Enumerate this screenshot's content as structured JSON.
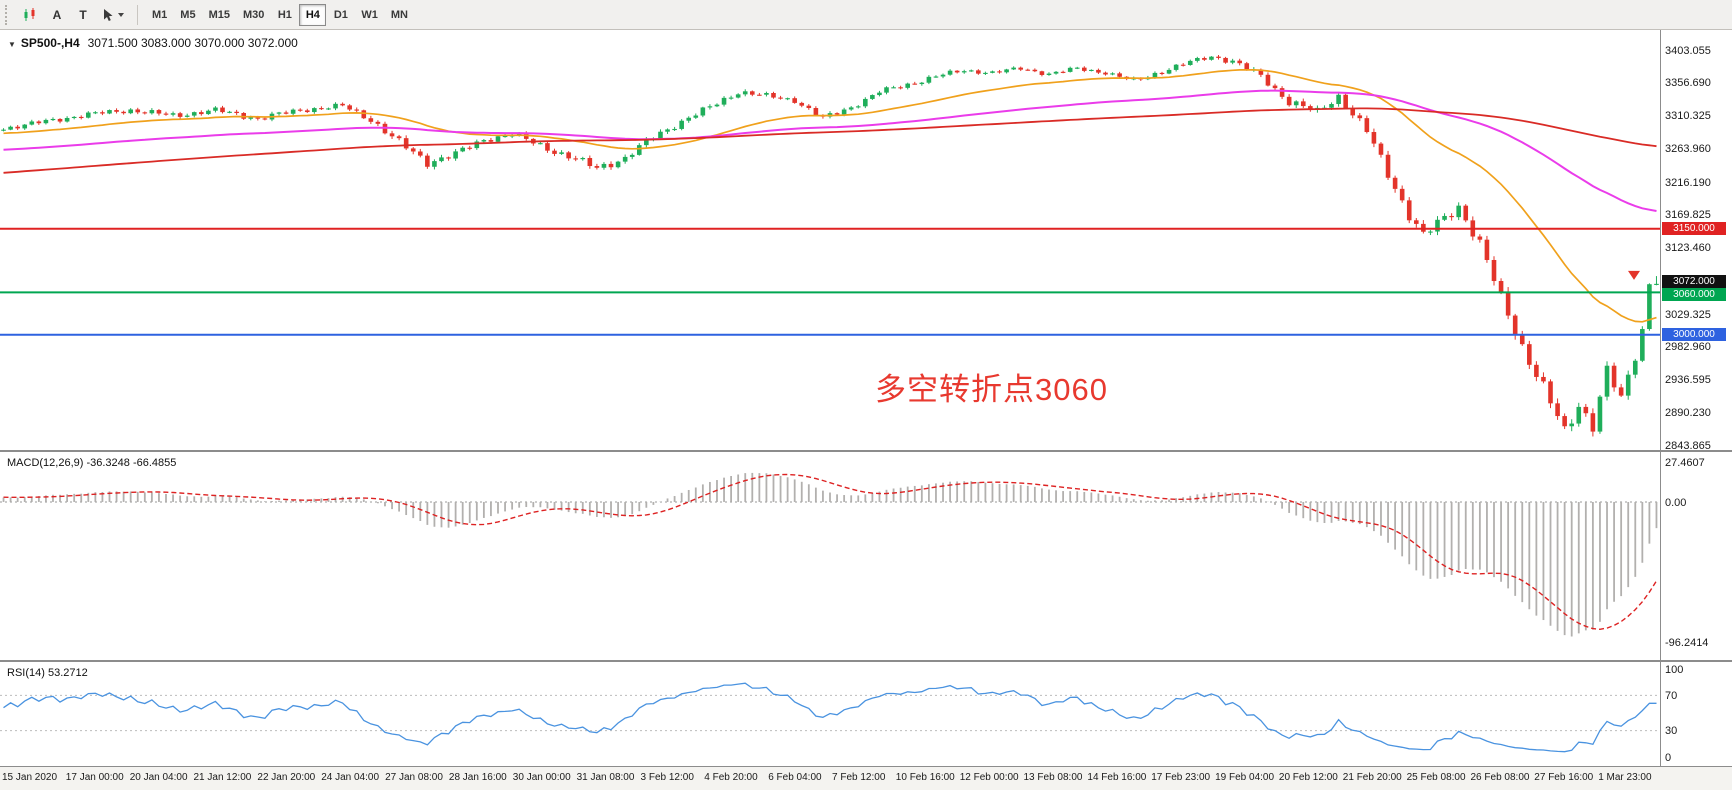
{
  "toolbar": {
    "tools": [
      {
        "name": "text-tool",
        "label": "A"
      },
      {
        "name": "label-tool",
        "label": "T"
      }
    ],
    "timeframes": [
      "M1",
      "M5",
      "M15",
      "M30",
      "H1",
      "H4",
      "D1",
      "W1",
      "MN"
    ],
    "active_timeframe": "H4"
  },
  "chart": {
    "expand_icon": "▼",
    "title_symbol": "SP500-,H4",
    "title_ohlc": "3071.500 3083.000 3070.000 3072.000",
    "annotation": "多空转折点3060"
  },
  "colors": {
    "bull": "#1fae5a",
    "bear": "#e3342a",
    "ma_fast": "#f0a11c",
    "ma_mid": "#ea3cea",
    "ma_slow": "#d92b26",
    "macd_hist": "#b2b0ae",
    "macd_signal": "#dd2222",
    "rsi": "#4a93e0",
    "annotation": "#e8392f"
  },
  "price_axis": {
    "min": 2843.865,
    "max": 3403.055,
    "ticks": [
      [
        "3403.055",
        3403.055
      ],
      [
        "3356.690",
        3356.69
      ],
      [
        "3310.325",
        3310.325
      ],
      [
        "3263.960",
        3263.96
      ],
      [
        "3216.190",
        3216.19
      ],
      [
        "3169.825",
        3169.825
      ],
      [
        "3123.460",
        3123.46
      ],
      [
        "3029.325",
        3029.325
      ],
      [
        "2982.960",
        2982.96
      ],
      [
        "2936.595",
        2936.595
      ],
      [
        "2890.230",
        2890.23
      ],
      [
        "2843.865",
        2843.865
      ]
    ]
  },
  "levels": [
    {
      "price": 3150.0,
      "label": "3150.000",
      "color": "#e02222",
      "line": true
    },
    {
      "price": 3072.0,
      "label": "3072.000",
      "color": "#111111",
      "line": false
    },
    {
      "price": 3060.0,
      "label": "3060.000",
      "color": "#00a651",
      "line": true
    },
    {
      "price": 3000.0,
      "label": "3000.000",
      "color": "#2e62e0",
      "line": true
    }
  ],
  "macd": {
    "label": "MACD(12,26,9) -36.3248 -66.4855",
    "fast": 12,
    "slow": 26,
    "signal": 9,
    "max": 27.4607,
    "min": -96.2414,
    "ticks": [
      [
        "27.4607",
        27.4607
      ],
      [
        "0.00",
        0
      ],
      [
        "-96.2414",
        -96.2414
      ]
    ]
  },
  "rsi": {
    "label": "RSI(14) 53.2712",
    "period": 14,
    "levels": [
      70,
      30
    ],
    "ticks": [
      [
        "100",
        100
      ],
      [
        "70",
        70
      ],
      [
        "30",
        30
      ],
      [
        "0",
        0
      ]
    ]
  },
  "time_axis": [
    "15 Jan 2020",
    "17 Jan 00:00",
    "20 Jan 04:00",
    "21 Jan 12:00",
    "22 Jan 20:00",
    "24 Jan 04:00",
    "27 Jan 08:00",
    "28 Jan 16:00",
    "30 Jan 00:00",
    "31 Jan 08:00",
    "3 Feb 12:00",
    "4 Feb 20:00",
    "6 Feb 04:00",
    "7 Feb 12:00",
    "10 Feb 16:00",
    "12 Feb 00:00",
    "13 Feb 08:00",
    "14 Feb 16:00",
    "17 Feb 23:00",
    "19 Feb 04:00",
    "20 Feb 12:00",
    "21 Feb 20:00",
    "25 Feb 08:00",
    "26 Feb 08:00",
    "27 Feb 16:00",
    "1 Mar 23:00"
  ],
  "chart_data": {
    "type": "candlestick",
    "symbol": "SP500-",
    "timeframe": "H4",
    "current_ohlc": {
      "open": 3071.5,
      "high": 3083.0,
      "low": 3070.0,
      "close": 3072.0
    },
    "bars_visible": 235,
    "prehistory_bars": 220,
    "prehistory_anchors": [
      [
        0,
        3130,
        4
      ],
      [
        40,
        3165,
        4
      ],
      [
        80,
        3200,
        4
      ],
      [
        120,
        3235,
        4
      ],
      [
        160,
        3262,
        4
      ],
      [
        200,
        3285,
        4
      ],
      [
        219,
        3292,
        4
      ]
    ],
    "anchors": [
      [
        0,
        3292,
        5
      ],
      [
        6,
        3302,
        5
      ],
      [
        12,
        3312,
        5
      ],
      [
        18,
        3318,
        5
      ],
      [
        24,
        3310,
        6
      ],
      [
        30,
        3318,
        5
      ],
      [
        36,
        3306,
        6
      ],
      [
        42,
        3318,
        5
      ],
      [
        48,
        3324,
        5
      ],
      [
        52,
        3305,
        7
      ],
      [
        56,
        3272,
        8
      ],
      [
        60,
        3244,
        8
      ],
      [
        64,
        3256,
        7
      ],
      [
        68,
        3276,
        6
      ],
      [
        72,
        3284,
        6
      ],
      [
        76,
        3268,
        7
      ],
      [
        80,
        3252,
        7
      ],
      [
        84,
        3236,
        8
      ],
      [
        88,
        3250,
        7
      ],
      [
        92,
        3280,
        7
      ],
      [
        96,
        3302,
        6
      ],
      [
        100,
        3322,
        6
      ],
      [
        104,
        3344,
        6
      ],
      [
        108,
        3338,
        5
      ],
      [
        112,
        3332,
        5
      ],
      [
        116,
        3306,
        6
      ],
      [
        120,
        3322,
        5
      ],
      [
        124,
        3344,
        5
      ],
      [
        128,
        3354,
        5
      ],
      [
        132,
        3366,
        5
      ],
      [
        136,
        3374,
        4
      ],
      [
        140,
        3371,
        4
      ],
      [
        144,
        3377,
        4
      ],
      [
        148,
        3369,
        4
      ],
      [
        152,
        3377,
        4
      ],
      [
        156,
        3371,
        4
      ],
      [
        160,
        3359,
        5
      ],
      [
        164,
        3373,
        5
      ],
      [
        168,
        3386,
        5
      ],
      [
        171,
        3394,
        4
      ],
      [
        174,
        3387,
        6
      ],
      [
        178,
        3366,
        7
      ],
      [
        182,
        3330,
        8
      ],
      [
        186,
        3315,
        8
      ],
      [
        189,
        3338,
        8
      ],
      [
        193,
        3288,
        10
      ],
      [
        196,
        3228,
        11
      ],
      [
        199,
        3170,
        11
      ],
      [
        201,
        3140,
        11
      ],
      [
        204,
        3165,
        11
      ],
      [
        206,
        3182,
        10
      ],
      [
        209,
        3128,
        12
      ],
      [
        212,
        3052,
        13
      ],
      [
        215,
        2984,
        13
      ],
      [
        218,
        2924,
        14
      ],
      [
        221,
        2862,
        14
      ],
      [
        223,
        2902,
        14
      ],
      [
        225,
        2872,
        14
      ],
      [
        227,
        2948,
        13
      ],
      [
        229,
        2908,
        13
      ],
      [
        231,
        2972,
        12
      ],
      [
        232,
        3008,
        8
      ],
      [
        233,
        3072,
        5
      ],
      [
        234,
        3072,
        2
      ]
    ],
    "moving_averages": [
      {
        "kind": "ema",
        "period": 34,
        "color_key": "ma_fast",
        "width": 1.7
      },
      {
        "kind": "ema",
        "period": 110,
        "color_key": "ma_mid",
        "width": 2
      },
      {
        "kind": "sma",
        "period": 200,
        "color_key": "ma_slow",
        "width": 1.8
      }
    ]
  }
}
